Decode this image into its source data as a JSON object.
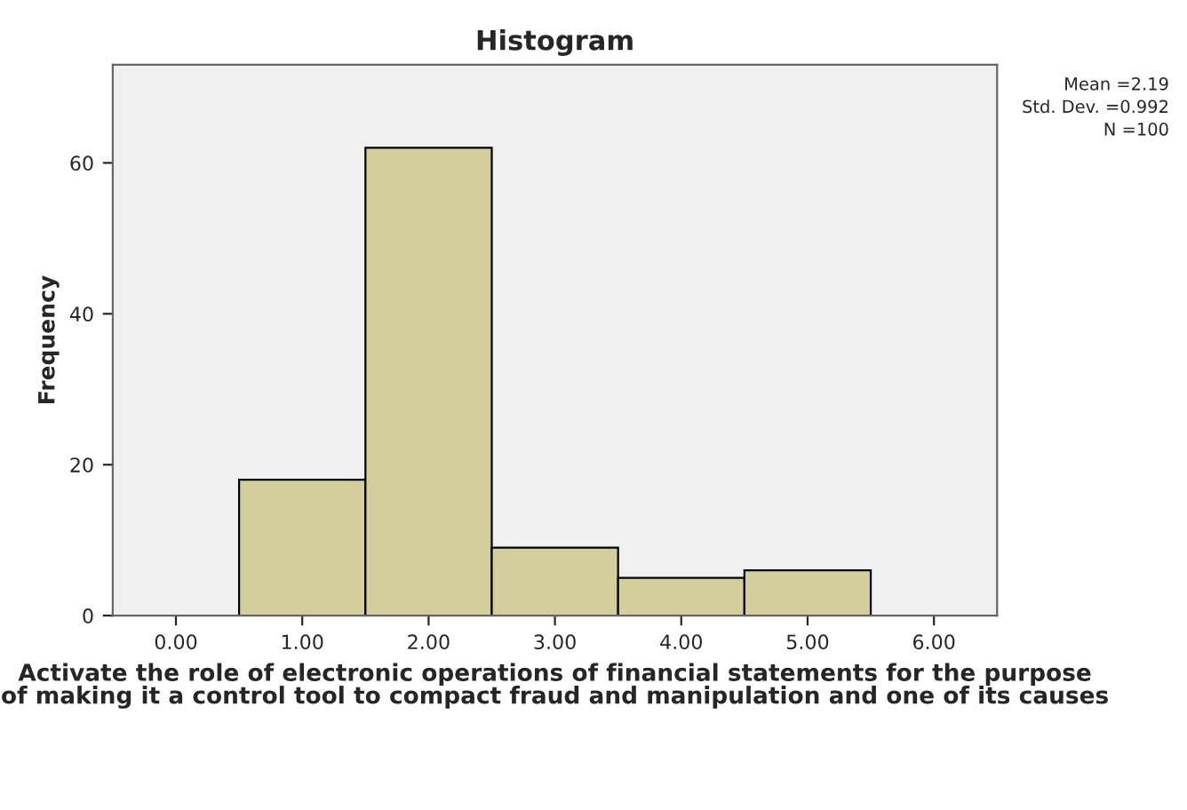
{
  "chart_data": {
    "type": "histogram",
    "title": "Histogram",
    "xlabel": "Activate the role of electronic operations of financial statements for the purpose of making it a control tool to compact fraud and manipulation and one of its causes",
    "ylabel": "Frequency",
    "bins": [
      0.5,
      1.5,
      2.5,
      3.5,
      4.5,
      5.5
    ],
    "values": [
      18,
      62,
      9,
      5,
      6
    ],
    "color": "#d3ce9c",
    "xlim": [
      -0.5,
      6.5
    ],
    "xticks": [
      {
        "value": 0,
        "label": "0.00"
      },
      {
        "value": 1,
        "label": "1.00"
      },
      {
        "value": 2,
        "label": "2.00"
      },
      {
        "value": 3,
        "label": "3.00"
      },
      {
        "value": 4,
        "label": "4.00"
      },
      {
        "value": 5,
        "label": "5.00"
      },
      {
        "value": 6,
        "label": "6.00"
      }
    ],
    "ylim": [
      0,
      73
    ],
    "yticks": [
      0,
      20,
      40,
      60
    ],
    "annotations": [
      "Mean =2.19",
      "Std. Dev. =0.992",
      "N =100"
    ],
    "grid": false
  }
}
